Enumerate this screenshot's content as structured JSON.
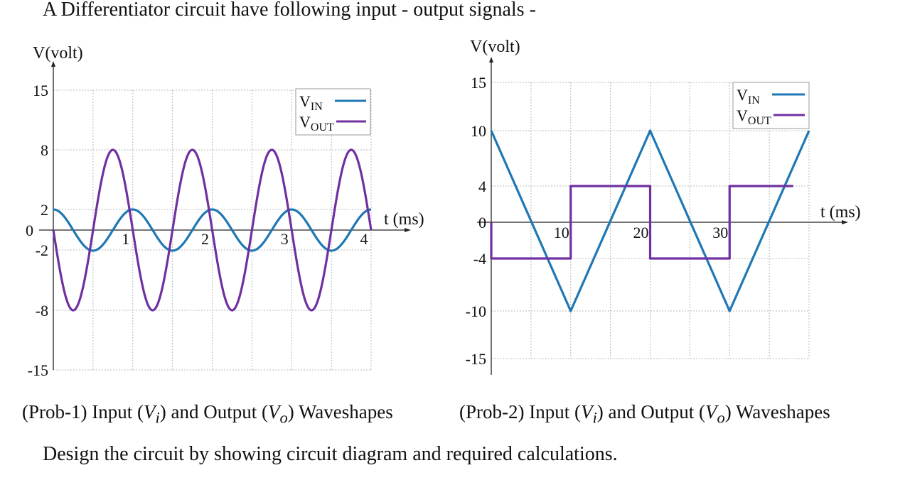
{
  "heading": "A Differentiator circuit have following input - output signals -",
  "note": "Design the circuit by showing circuit diagram and required calculations.",
  "captions": [
    {
      "pre": "(Prob-1) Input (",
      "v1": "V",
      "s1": "i",
      "mid": ") and Output (",
      "v2": "V",
      "s2": "o",
      "post": ") Waveshapes"
    },
    {
      "pre": "(Prob-2) Input (",
      "v1": "V",
      "s1": "i",
      "mid": ") and Output (",
      "v2": "V",
      "s2": "o",
      "post": ") Waveshapes"
    }
  ],
  "colors": {
    "vin": "#1f77b4",
    "vout": "#7030a0",
    "grid": "#b8b8b8",
    "axis": "#222222"
  },
  "chart_data": [
    {
      "type": "line",
      "ylabel": "V(volt)",
      "xlabel": "t (ms)",
      "xlim": [
        0,
        4
      ],
      "ylim": [
        -15,
        15
      ],
      "xgrid_step": 0.5,
      "yticks": [
        15,
        8,
        2,
        0,
        -2,
        -8,
        -15
      ],
      "xtick_labels": [
        "1",
        "2",
        "3",
        "4"
      ],
      "legend": {
        "position": "top-right",
        "entries": [
          {
            "main": "V",
            "sub": "IN",
            "series": "vin"
          },
          {
            "main": "V",
            "sub": "OUT",
            "series": "vout"
          }
        ]
      },
      "series": [
        {
          "key": "vin",
          "shape": "cosine",
          "amplitude": 2,
          "frequency_khz": 1
        },
        {
          "key": "vout",
          "shape": "negative-sine",
          "amplitude": 8,
          "frequency_khz": 1
        }
      ]
    },
    {
      "type": "line",
      "ylabel": "V(volt)",
      "xlabel": "t (ms)",
      "xlim": [
        0,
        40
      ],
      "ylim": [
        -15,
        15
      ],
      "xgrid_step": 5,
      "yticks": [
        15,
        10,
        4,
        0,
        -4,
        -10,
        -15
      ],
      "xtick_labels": [
        "10",
        "20",
        "30"
      ],
      "legend": {
        "position": "top-right",
        "entries": [
          {
            "main": "V",
            "sub": "IN",
            "series": "vin"
          },
          {
            "main": "V",
            "sub": "OUT",
            "series": "vout"
          }
        ]
      },
      "series": [
        {
          "key": "vin",
          "shape": "triangle",
          "x": [
            0,
            10,
            20,
            30,
            40
          ],
          "y": [
            10,
            -10,
            10,
            -10,
            10
          ]
        },
        {
          "key": "vout",
          "shape": "square",
          "x": [
            0,
            0,
            10,
            10,
            20,
            20,
            30,
            30,
            38
          ],
          "y": [
            0,
            -4,
            -4,
            4,
            4,
            -4,
            -4,
            4,
            4
          ]
        }
      ]
    }
  ]
}
